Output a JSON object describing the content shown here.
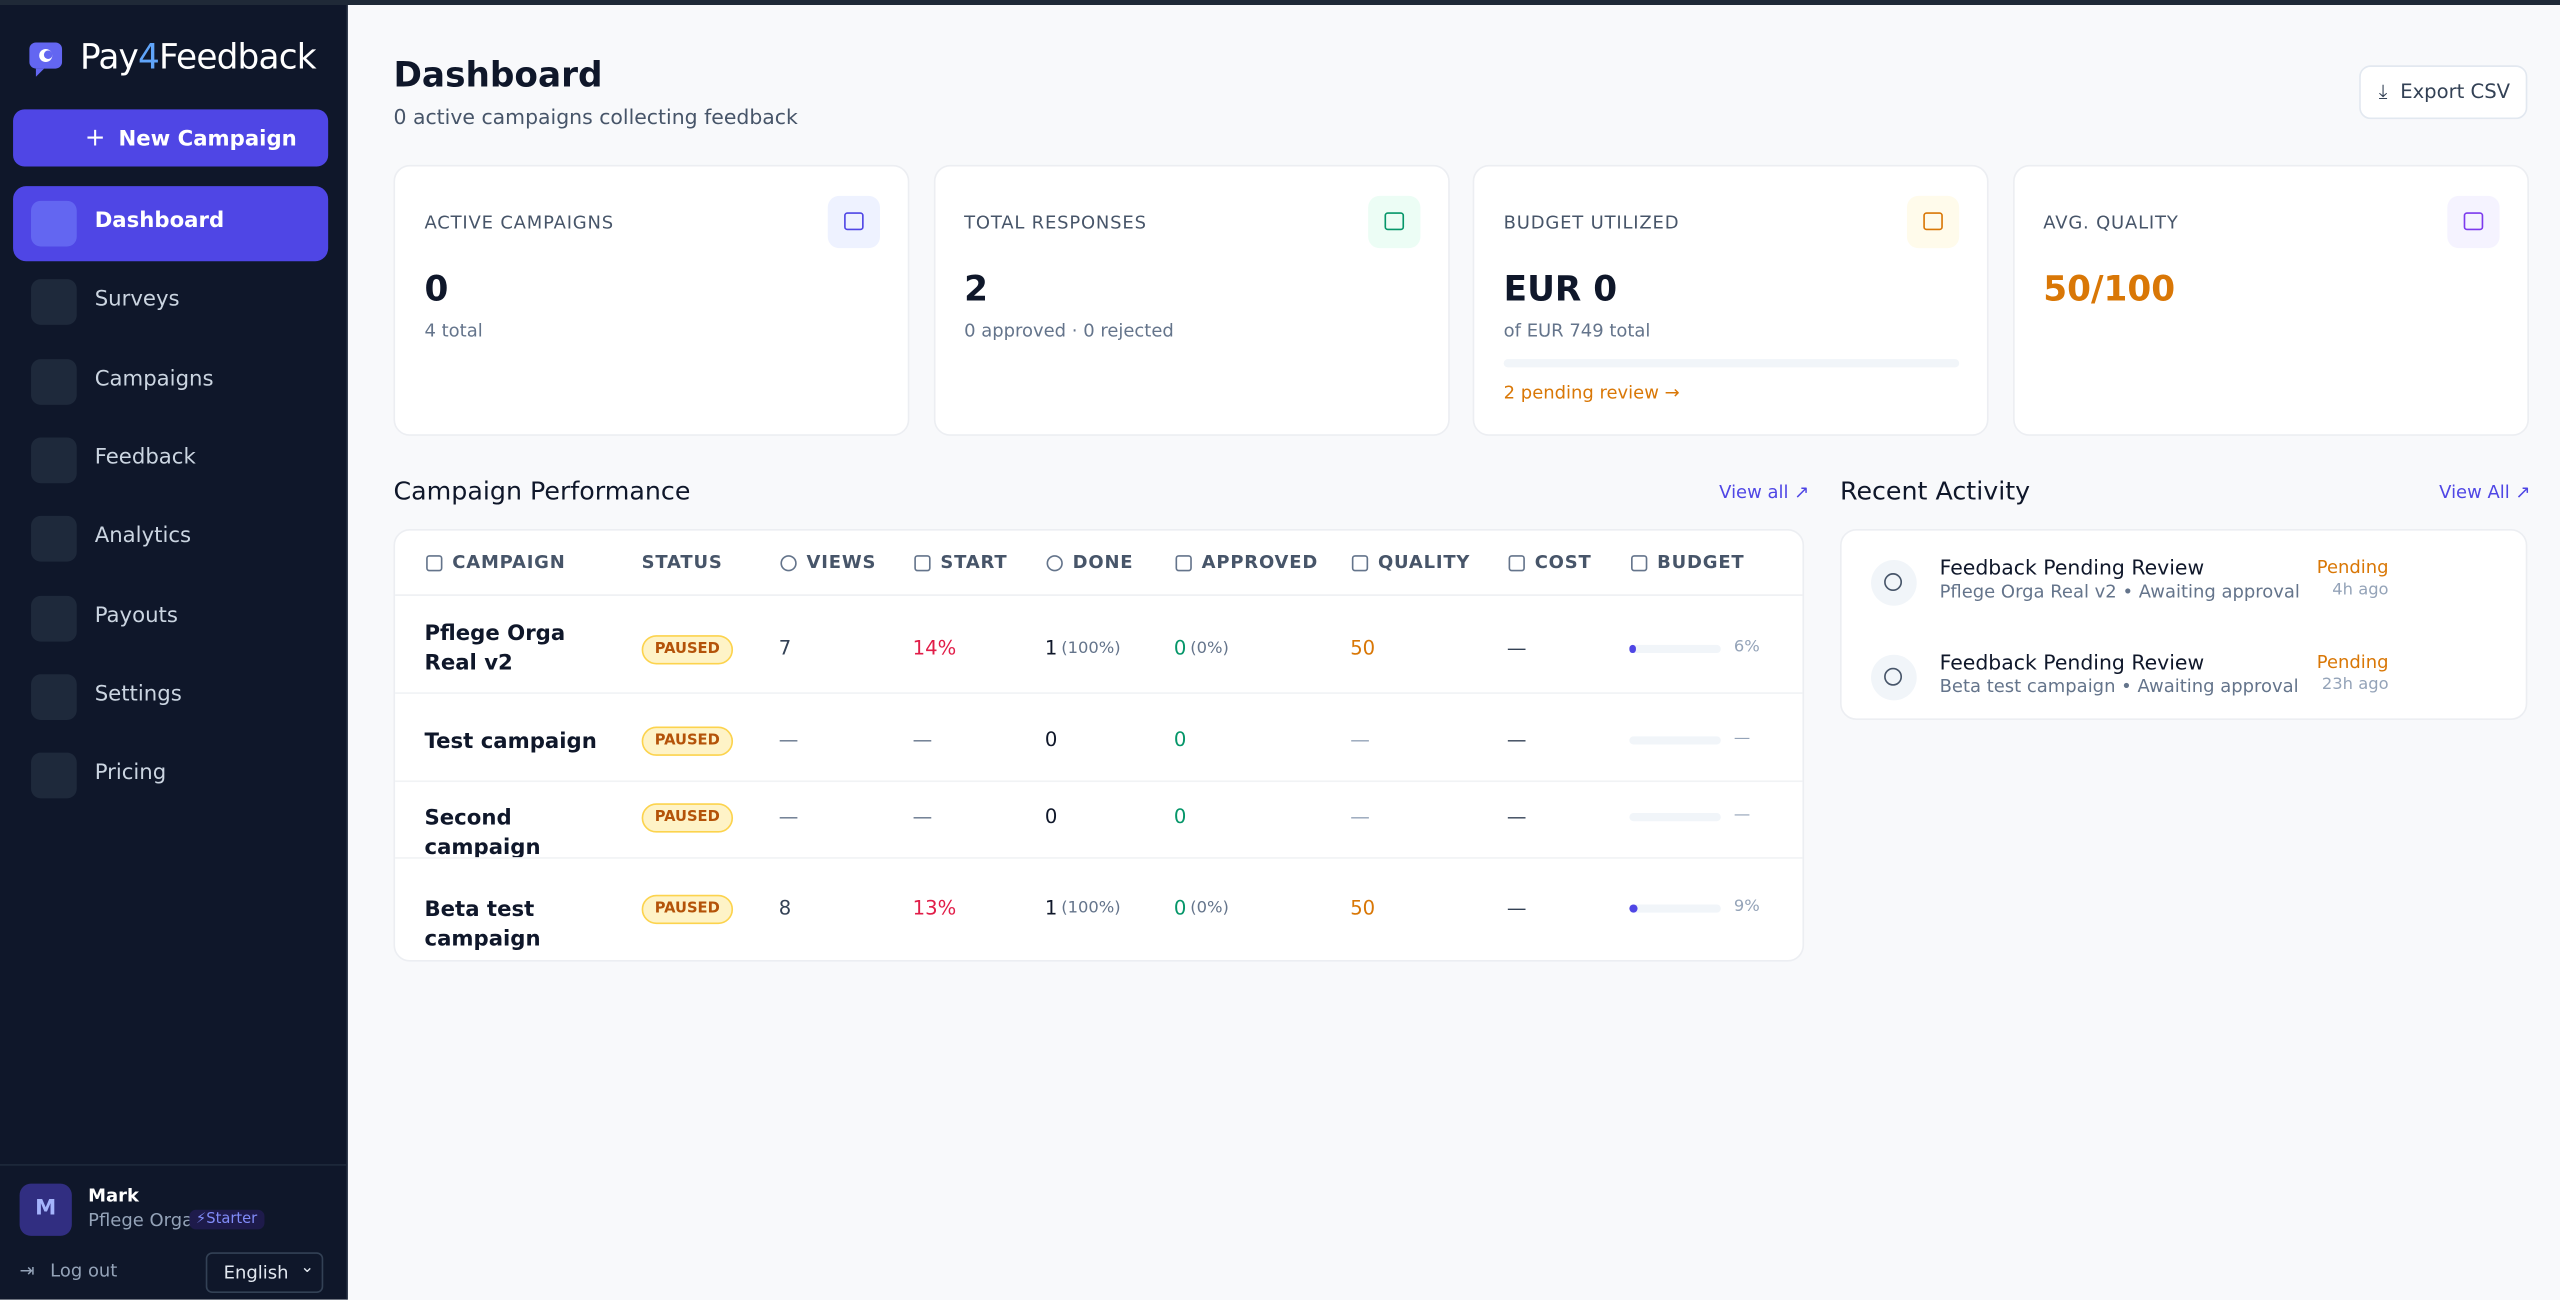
{
  "sidebar": {
    "brand": {
      "prefix": "Pay",
      "accent": "4",
      "suffix": "Feedback"
    },
    "new_campaign": "New Campaign",
    "nav": [
      "Dashboard",
      "Surveys",
      "Campaigns",
      "Feedback",
      "Analytics",
      "Payouts",
      "Settings",
      "Pricing"
    ],
    "active_nav": 0,
    "user": {
      "initial": "M",
      "name": "Mark",
      "org": "Pflege Orga",
      "plan": "Starter"
    },
    "logout": "Log out",
    "language": "English"
  },
  "header": {
    "title": "Dashboard",
    "subtitle": "0 active campaigns collecting feedback",
    "export": "Export CSV"
  },
  "stats": [
    {
      "label": "ACTIVE CAMPAIGNS",
      "value": "0",
      "note": "4 total"
    },
    {
      "label": "TOTAL RESPONSES",
      "value": "2",
      "note": "0 approved · 0 rejected"
    },
    {
      "label": "BUDGET UTILIZED",
      "value": "EUR 0",
      "note": "of EUR 749 total",
      "link": "2 pending review →"
    },
    {
      "label": "AVG. QUALITY",
      "value": "50/100"
    }
  ],
  "performance": {
    "title": "Campaign Performance",
    "view_all": "View all",
    "columns": [
      "CAMPAIGN",
      "STATUS",
      "VIEWS",
      "START",
      "DONE",
      "APPROVED",
      "QUALITY",
      "COST",
      "BUDGET"
    ],
    "rows": [
      {
        "name": "Pflege Orga Real v2",
        "status": "PAUSED",
        "views": "7",
        "start": "14%",
        "done": "1",
        "done_pct": "(100%)",
        "approved": "0",
        "approved_pct": "(0%)",
        "quality": "50",
        "cost": "—",
        "budget": 6,
        "budget_label": "6%"
      },
      {
        "name": "Test campaign",
        "status": "PAUSED",
        "views": "—",
        "start": "—",
        "done": "0",
        "approved": "0",
        "quality": "—",
        "cost": "—",
        "budget_label": "—"
      },
      {
        "name": "Second campaign",
        "status": "PAUSED",
        "views": "—",
        "start": "—",
        "done": "0",
        "approved": "0",
        "quality": "—",
        "cost": "—",
        "budget_label": "—"
      },
      {
        "name": "Beta test campaign",
        "status": "PAUSED",
        "views": "8",
        "start": "13%",
        "done": "1",
        "done_pct": "(100%)",
        "approved": "0",
        "approved_pct": "(0%)",
        "quality": "50",
        "cost": "—",
        "budget": 9,
        "budget_label": "9%"
      }
    ]
  },
  "activity": {
    "title": "Recent Activity",
    "view_all": "View All",
    "items": [
      {
        "title": "Feedback Pending Review",
        "detail": "Pflege Orga Real v2 • Awaiting approval",
        "status": "Pending",
        "time": "4h ago"
      },
      {
        "title": "Feedback Pending Review",
        "detail": "Beta test campaign • Awaiting approval",
        "status": "Pending",
        "time": "23h ago"
      }
    ]
  }
}
